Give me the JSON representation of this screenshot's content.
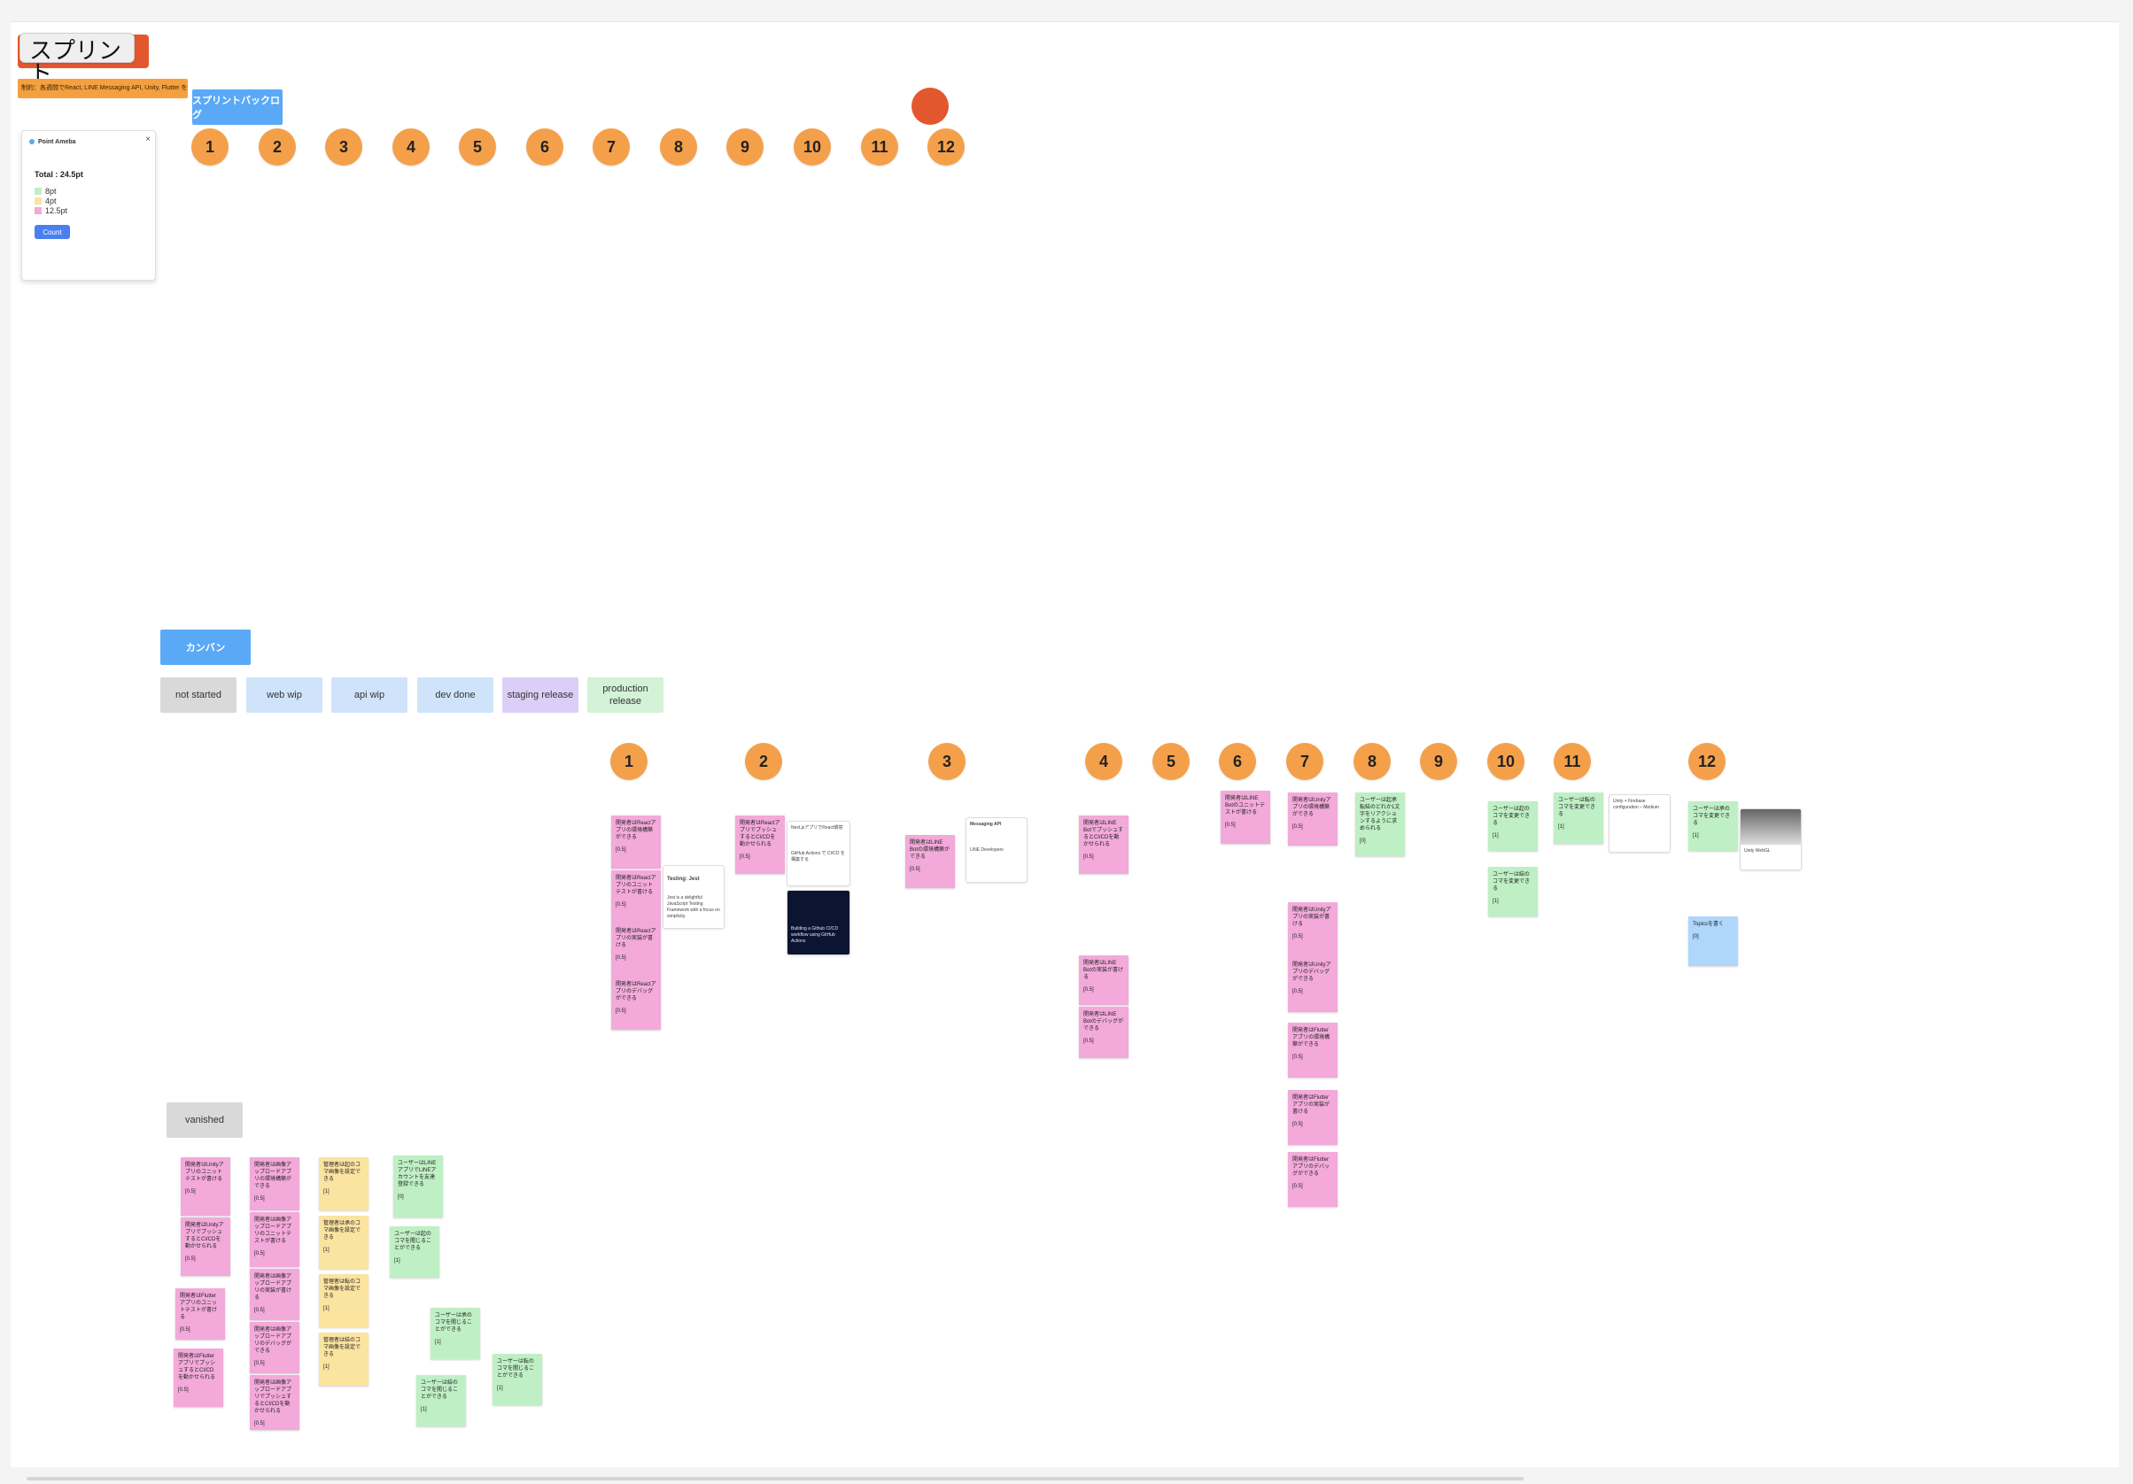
{
  "board": {
    "title": "スプリント",
    "subtitle_note": "制約：各週間でReact, LINE Messaging API, Unity, Flutter を使うこと",
    "sprint_backlog_label": "スプリントバックログ",
    "kanban_label": "カンバン",
    "vanished_label": "vanished"
  },
  "sprint_numbers": [
    "1",
    "2",
    "3",
    "4",
    "5",
    "6",
    "7",
    "8",
    "9",
    "10",
    "11",
    "12"
  ],
  "plugin": {
    "name": "Point Ameba",
    "total": "Total : 24.5pt",
    "legend": [
      {
        "label": "8pt",
        "color": "#bfefc4"
      },
      {
        "label": "4pt",
        "color": "#fbe3a0"
      },
      {
        "label": "12.5pt",
        "color": "#f3a9da"
      }
    ],
    "count_button": "Count",
    "close_icon": "close-icon"
  },
  "kanban_columns": [
    {
      "label": "not started",
      "color": "#d9d9d9"
    },
    {
      "label": "web wip",
      "color": "#cfe4fb"
    },
    {
      "label": "api wip",
      "color": "#cfe4fb"
    },
    {
      "label": "dev done",
      "color": "#cfe4fb"
    },
    {
      "label": "staging release",
      "color": "#dccff7"
    },
    {
      "label": "production release",
      "color": "#d3f2d6"
    }
  ],
  "stickies": {
    "s1a": {
      "text": "開発者はReactアプリの環境構築ができる",
      "pts": "[0.5]"
    },
    "s1b": {
      "text": "開発者はReactアプリのユニットテストが書ける",
      "pts": "[0.5]"
    },
    "s1c": {
      "text": "開発者はReactアプリの実装が書ける",
      "pts": "[0.5]"
    },
    "s1d": {
      "text": "開発者はReactアプリのデバッグができる",
      "pts": "[0.5]"
    },
    "s2a": {
      "text": "開発者はReactアプリでプッシュするとCI/CDを動かせられる",
      "pts": "[0.5]"
    },
    "s3a": {
      "text": "開発者はLINE Botの環境構築ができる",
      "pts": "[0.5]"
    },
    "s4a": {
      "text": "開発者はLINE BotでプッシュするとCI/CDを動かせられる",
      "pts": "[0.5]"
    },
    "s4b": {
      "text": "開発者はLINE Botの実装が書ける",
      "pts": "[0.5]"
    },
    "s4c": {
      "text": "開発者はLINE Botのデバッグができる",
      "pts": "[0.5]"
    },
    "s6a": {
      "text": "開発者はLINE Botのユニットテストが書ける",
      "pts": "[0.5]"
    },
    "s7a": {
      "text": "開発者はUnityアプリの環境構築ができる",
      "pts": "[0.5]"
    },
    "s7b": {
      "text": "開発者はUnityアプリの実装が書ける",
      "pts": "[0.5]"
    },
    "s7c": {
      "text": "開発者はUnityアプリのデバッグができる",
      "pts": "[0.5]"
    },
    "s7d": {
      "text": "開発者はFlutterアプリの環境構築ができる",
      "pts": "[0.5]"
    },
    "s7e": {
      "text": "開発者はFlutterアプリの実装が書ける",
      "pts": "[0.5]"
    },
    "s7f": {
      "text": "開発者はFlutterアプリのデバッグができる",
      "pts": "[0.5]"
    },
    "s8a": {
      "text": "ユーザーは起承転結のどれか1文字をリアクションするように求められる",
      "pts": "[0]"
    },
    "s10a": {
      "text": "ユーザーは起のコマを変更できる",
      "pts": "[1]"
    },
    "s10b": {
      "text": "ユーザーは結のコマを変更できる",
      "pts": "[1]"
    },
    "s11a": {
      "text": "ユーザーは転のコマを変更できる",
      "pts": "[1]"
    },
    "s12a": {
      "text": "ユーザーは承のコマを変更できる",
      "pts": "[1]"
    },
    "s12b": {
      "text": "Topicsを書く",
      "pts": "[0]"
    },
    "v1": {
      "text": "開発者はUnityアプリのユニットテストが書ける",
      "pts": "[0.5]"
    },
    "v2": {
      "text": "開発者はUnityアプリでプッシュするとCI/CDを動かせられる",
      "pts": "[0.5]"
    },
    "v3": {
      "text": "開発者はFlutterアプリのユニットテストが書ける",
      "pts": "[0.5]"
    },
    "v4": {
      "text": "開発者はFlutterアプリでプッシュするとCI/CDを動かせられる",
      "pts": "[0.5]"
    },
    "v5": {
      "text": "開発者は画像アップロードアプリの環境構築ができる",
      "pts": "[0.5]"
    },
    "v6": {
      "text": "開発者は画像アップロードアプリのユニットテストが書ける",
      "pts": "[0.5]"
    },
    "v7": {
      "text": "開発者は画像アップロードアプリの実装が書ける",
      "pts": "[0.5]"
    },
    "v8": {
      "text": "開発者は画像アップロードアプリのデバッグができる",
      "pts": "[0.5]"
    },
    "v9": {
      "text": "開発者は画像アップロードアプリでプッシュするとCI/CDを動かせられる",
      "pts": "[0.5]"
    },
    "y1": {
      "text": "管理者は起のコマ画像を設定できる",
      "pts": "[1]"
    },
    "y2": {
      "text": "管理者は承のコマ画像を設定できる",
      "pts": "[1]"
    },
    "y3": {
      "text": "管理者は転のコマ画像を設定できる",
      "pts": "[1]"
    },
    "y4": {
      "text": "管理者は結のコマ画像を設定できる",
      "pts": "[1]"
    },
    "g1": {
      "text": "ユーザーはLINEアプリでLINEアカウントを友達登録できる",
      "pts": "[0]"
    },
    "g2": {
      "text": "ユーザーは起のコマを閲じることができる",
      "pts": "[1]"
    },
    "g3": {
      "text": "ユーザーは承のコマを閲じることができる",
      "pts": "[1]"
    },
    "g4": {
      "text": "ユーザーは結のコマを閲じることができる",
      "pts": "[1]"
    },
    "g5": {
      "text": "ユーザーは転のコマを閲じることができる",
      "pts": "[1]"
    }
  },
  "links": {
    "l1": {
      "title": "Testing: Jest",
      "desc": "Jest is a delightful JavaScript Testing Framework with a focus on simplicity."
    },
    "l2": {
      "title": "Next.jsアプリでReact環境",
      "desc": "GitHub Actions で CI/CD を構築する"
    },
    "l3": {
      "title": "Building a Github CI/CD",
      "desc": "workflow using GitHub Actions"
    },
    "l4": {
      "title": "Messaging API",
      "desc": "LINE Developers"
    },
    "l5": {
      "title": "Unity + Firebase",
      "desc": "configuration – Medium"
    },
    "l6": {
      "title": "Unity WebGL",
      "desc": "ビルド設定"
    }
  },
  "colors": {
    "accent_blue": "#5aa9f7",
    "sprint_orange": "#f4a04b",
    "title_red": "#e3572e",
    "pink": "#f3a9da",
    "yellow": "#fbe3a0",
    "green": "#bfefc4"
  }
}
